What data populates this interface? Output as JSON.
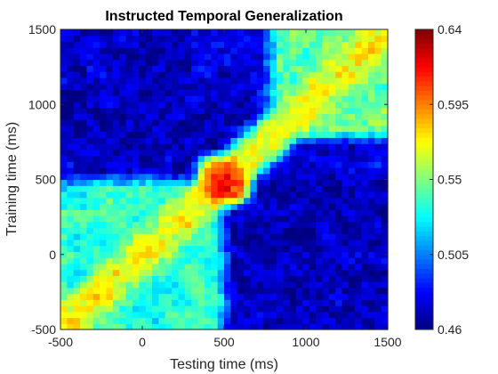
{
  "chart_data": {
    "type": "heatmap",
    "title": "Instructed Temporal Generalization",
    "xlabel": "Testing time (ms)",
    "ylabel": "Training time (ms)",
    "xlim": [
      -500,
      1500
    ],
    "ylim": [
      -500,
      1500
    ],
    "x_ticks": [
      -500,
      0,
      500,
      1000,
      1500
    ],
    "y_ticks": [
      -500,
      0,
      500,
      1000,
      1500
    ],
    "x_tick_labels": [
      "-500",
      "0",
      "500",
      "1000",
      "1500"
    ],
    "y_tick_labels": [
      "-500",
      "0",
      "500",
      "1000",
      "1500"
    ],
    "colorbar": {
      "colormap": "jet",
      "clim": [
        0.46,
        0.64
      ],
      "ticks": [
        0.46,
        0.505,
        0.55,
        0.595,
        0.64
      ],
      "tick_labels": [
        "0.46",
        "0.505",
        "0.55",
        "0.595",
        "0.64"
      ],
      "position": "right"
    },
    "grid": false,
    "grid_resolution": [
      50,
      50
    ],
    "data_description": {
      "background_level": 0.475,
      "regions": [
        {
          "x_range": [
            -500,
            500
          ],
          "y_range": [
            -500,
            500
          ],
          "level": 0.535
        },
        {
          "x_range": [
            800,
            1500
          ],
          "y_range": [
            800,
            1500
          ],
          "level": 0.545
        },
        {
          "x_range": [
            500,
            1500
          ],
          "y_range": [
            -500,
            500
          ],
          "level": 0.47
        },
        {
          "x_range": [
            -500,
            300
          ],
          "y_range": [
            600,
            1500
          ],
          "level": 0.47
        }
      ],
      "diagonal_level": 0.58,
      "peak": {
        "x": 500,
        "y": 500,
        "value": 0.635
      }
    }
  }
}
